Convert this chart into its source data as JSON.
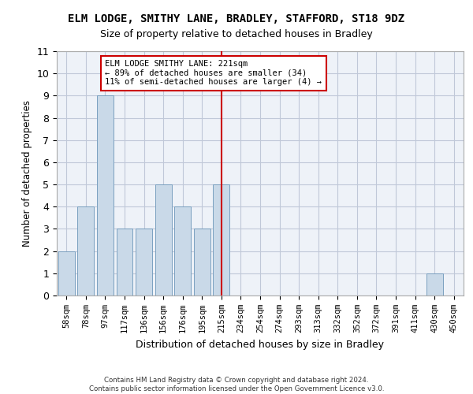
{
  "title1": "ELM LODGE, SMITHY LANE, BRADLEY, STAFFORD, ST18 9DZ",
  "title2": "Size of property relative to detached houses in Bradley",
  "xlabel": "Distribution of detached houses by size in Bradley",
  "ylabel": "Number of detached properties",
  "footnote": "Contains HM Land Registry data © Crown copyright and database right 2024.\nContains public sector information licensed under the Open Government Licence v3.0.",
  "categories": [
    "58sqm",
    "78sqm",
    "97sqm",
    "117sqm",
    "136sqm",
    "156sqm",
    "176sqm",
    "195sqm",
    "215sqm",
    "234sqm",
    "254sqm",
    "274sqm",
    "293sqm",
    "313sqm",
    "332sqm",
    "352sqm",
    "372sqm",
    "391sqm",
    "411sqm",
    "430sqm",
    "450sqm"
  ],
  "values": [
    2,
    4,
    9,
    3,
    3,
    5,
    4,
    3,
    5,
    0,
    0,
    0,
    0,
    0,
    0,
    0,
    0,
    0,
    0,
    1,
    0
  ],
  "bar_color": "#c9d9e8",
  "bar_edge_color": "#7aa0c0",
  "highlight_index": 8,
  "annotation_text": "ELM LODGE SMITHY LANE: 221sqm\n← 89% of detached houses are smaller (34)\n11% of semi-detached houses are larger (4) →",
  "annotation_box_color": "#cc0000",
  "ylim": [
    0,
    11
  ],
  "yticks": [
    0,
    1,
    2,
    3,
    4,
    5,
    6,
    7,
    8,
    9,
    10,
    11
  ],
  "grid_color": "#c0c8d8",
  "bg_color": "#eef2f8",
  "title1_fontsize": 10,
  "title2_fontsize": 9,
  "bar_width": 0.85
}
